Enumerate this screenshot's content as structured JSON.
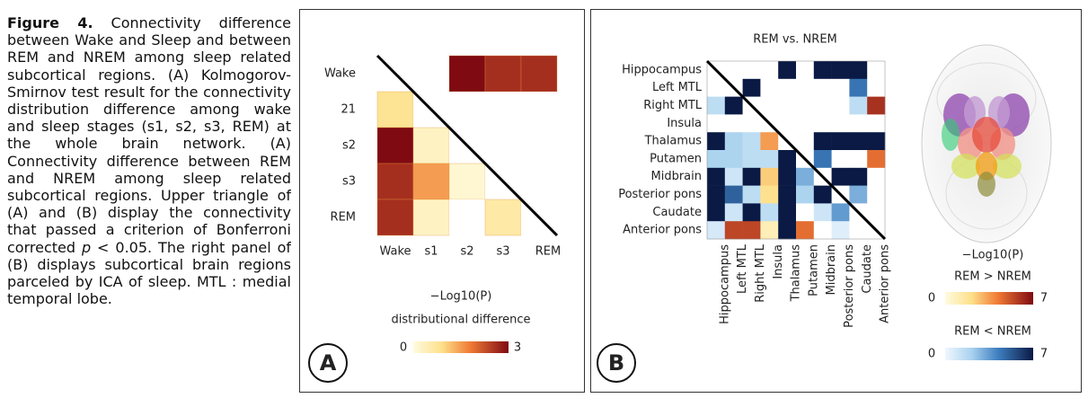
{
  "caption": {
    "label": "Figure 4.",
    "text_before_p": " Connectivity difference between Wake and Sleep and between REM and NREM among sleep related subcortical regions. (A) Kolmogorov-Smirnov test result for the connectivity distribution difference among wake and sleep stages (s1, s2, s3, REM) at the whole brain network. (A) Connectivity difference between REM and NREM among sleep related subcortical regions. Upper triangle of (A) and (B) display the connectivity that passed a criterion of Bonferroni corrected ",
    "p": "p",
    "text_after_p": " < 0.05. The right panel of (B) displays subcortical brain regions parceled by ICA of sleep. MTL : medial temporal lobe."
  },
  "panel_a": {
    "letter": "A",
    "row_labels": [
      "Wake",
      "21",
      "s2",
      "s3",
      "REM"
    ],
    "col_labels": [
      "Wake",
      "s1",
      "s2",
      "s3",
      "REM"
    ],
    "matrix": [
      [
        0,
        0,
        3,
        2.6,
        2.6
      ],
      [
        0.8,
        0,
        0,
        0,
        0
      ],
      [
        3,
        0.3,
        0,
        0,
        0
      ],
      [
        2.6,
        1.5,
        0.15,
        0,
        0
      ],
      [
        2.6,
        0.3,
        0,
        0.6,
        0
      ]
    ],
    "colorbar": {
      "title": "−Log10(P)",
      "subtitle": "distributional difference",
      "ticks": [
        0,
        3
      ]
    }
  },
  "panel_b": {
    "letter": "B",
    "title": "REM vs. NREM",
    "labels": [
      "Hippocampus",
      "Left MTL",
      "Right MTL",
      "Insula",
      "Thalamus",
      "Putamen",
      "Midbrain",
      "Posterior pons",
      "Caudate",
      "Anterior pons"
    ],
    "matrix": [
      [
        0,
        0,
        0,
        0,
        -7,
        0,
        -7,
        -7,
        -7,
        0
      ],
      [
        0,
        0,
        -7,
        0,
        0,
        0,
        0,
        0,
        -4.5,
        0
      ],
      [
        -1.5,
        -7,
        0,
        0,
        0,
        0,
        0,
        0,
        -1.5,
        6
      ],
      [
        0,
        0,
        0,
        0,
        0,
        0,
        0,
        0,
        0,
        0
      ],
      [
        -7,
        -2,
        -1.5,
        3.5,
        0,
        0,
        -7,
        -7,
        -7,
        -7
      ],
      [
        -2,
        -2,
        -1.5,
        -1.5,
        -7,
        0,
        -4.5,
        0,
        0,
        4.5
      ],
      [
        -7,
        -1,
        -7,
        2.5,
        -7,
        -3,
        0,
        -7,
        -7,
        0
      ],
      [
        -7,
        -5,
        -1.5,
        2,
        -7,
        -2,
        -7,
        0,
        -3,
        0
      ],
      [
        -7,
        -1,
        -7,
        -1.5,
        -7,
        0,
        -1,
        -3.5,
        0,
        0
      ],
      [
        -0.8,
        5.5,
        5.5,
        1,
        -7,
        4.5,
        0,
        -0.5,
        0,
        0
      ]
    ],
    "colorbar": {
      "title": "−Log10(P)",
      "positive": {
        "label": "REM > NREM",
        "ticks": [
          0,
          7
        ]
      },
      "negative": {
        "label": "REM < NREM",
        "ticks": [
          0,
          7
        ]
      }
    }
  }
}
